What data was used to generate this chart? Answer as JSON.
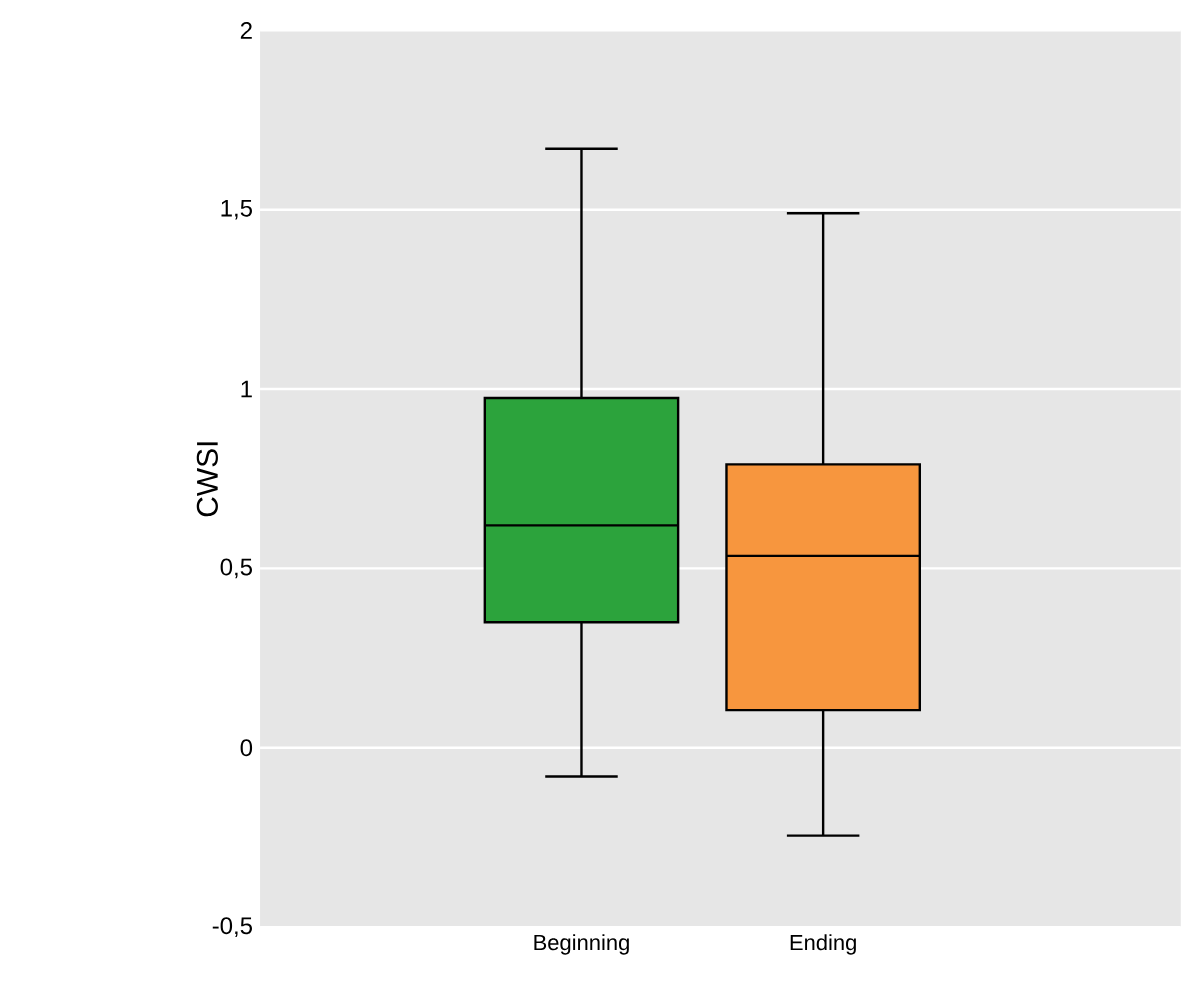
{
  "chart_data": {
    "type": "box",
    "ylabel": "CWSI",
    "categories": [
      "Beginning",
      "Ending"
    ],
    "boxes": [
      {
        "low": -0.08,
        "q1": 0.35,
        "median": 0.62,
        "q3": 0.975,
        "high": 1.67
      },
      {
        "low": -0.245,
        "q1": 0.105,
        "median": 0.535,
        "q3": 0.79,
        "high": 1.49
      }
    ],
    "colors": [
      "#2ca33c",
      "#f7963e"
    ],
    "ylim": [
      -0.5,
      2
    ],
    "yticks": [
      {
        "value": -0.5,
        "label": "-0,5"
      },
      0,
      {
        "value": 0.5,
        "label": "0,5"
      },
      1,
      {
        "value": 1.5,
        "label": "1,5"
      },
      2
    ],
    "grid": "y"
  }
}
